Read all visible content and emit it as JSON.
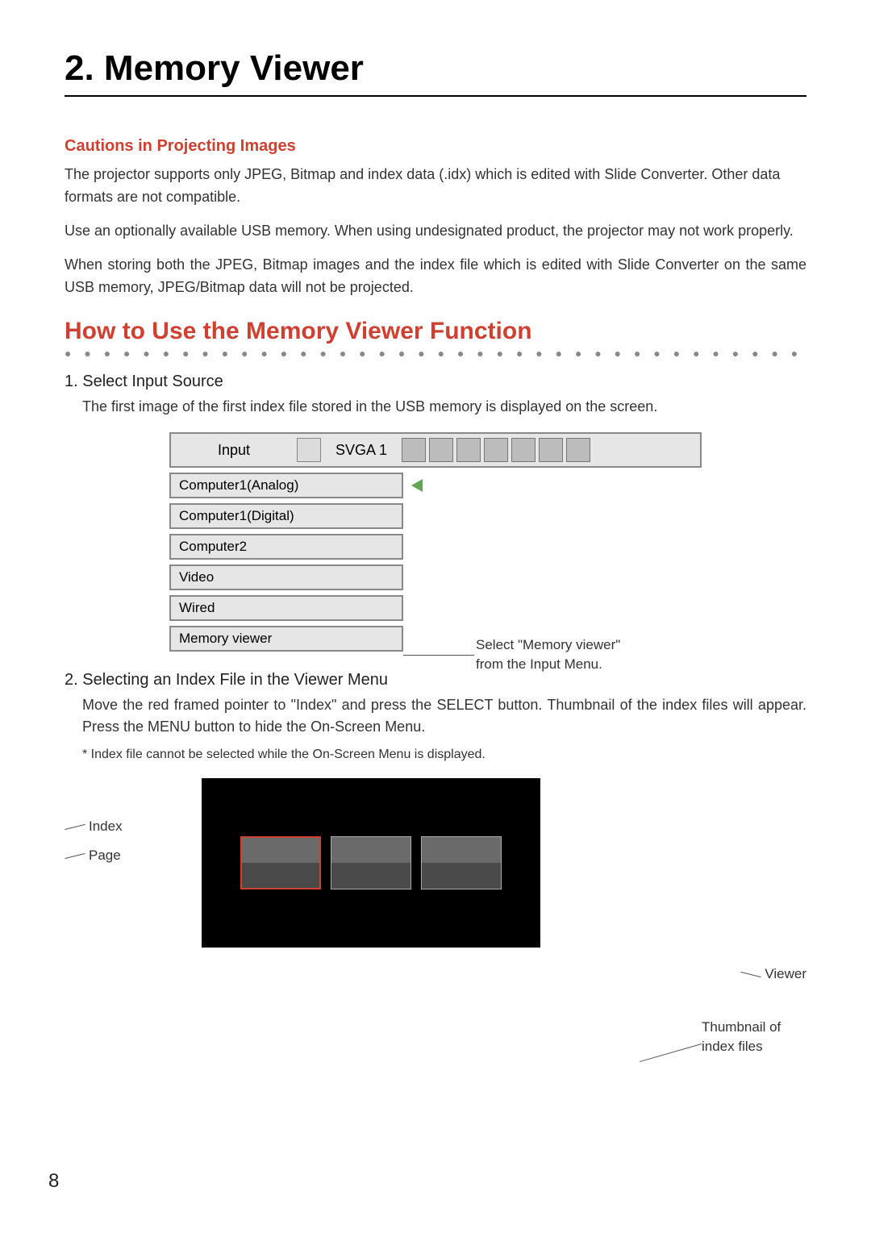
{
  "page": {
    "title": "2. Memory Viewer",
    "page_number": "8"
  },
  "cautions": {
    "heading": "Cautions in Projecting Images",
    "p1": "The projector supports only JPEG, Bitmap and index data (.idx) which is edited with Slide Converter.  Other data formats are not compatible.",
    "p2": "Use an optionally available USB memory.  When using undesignated product, the projector may not work properly.",
    "p3": "When storing both the JPEG, Bitmap images and the index file which is edited with Slide Converter on the same USB memory, JPEG/Bitmap data will not be projected."
  },
  "howto": {
    "heading": "How to Use the Memory Viewer Function",
    "dots": "● ● ● ● ● ● ● ● ● ● ● ● ● ● ● ● ● ● ● ● ● ● ● ● ● ● ● ● ● ● ● ● ● ● ● ● ● ● ● ● ● ● ● ● ● ● ● ● ● ● ● ● ● ● ● ● ● ● ● ● ● ● ● ● ● ●"
  },
  "step1": {
    "title": "1. Select Input Source",
    "text": "The first image of the first index file stored in the USB memory is displayed on the screen."
  },
  "menu": {
    "header_label": "Input",
    "mode": "SVGA 1",
    "items": [
      "Computer1(Analog)",
      "Computer1(Digital)",
      "Computer2",
      "Video",
      "Wired",
      "Memory viewer"
    ],
    "note_l1": "Select \"Memory viewer\"",
    "note_l2": "from the Input Menu."
  },
  "step2": {
    "title": "2. Selecting an Index File in the Viewer Menu",
    "text": "Move the red framed pointer to \"Index\" and press the SELECT button.  Thumbnail of the index files will appear.  Press the MENU button to hide the On-Screen Menu.",
    "footnote": "* Index file cannot be selected while the On-Screen Menu is displayed."
  },
  "viewer": {
    "label_index": "Index",
    "label_page": "Page",
    "note_viewer": "Viewer",
    "note_thumb": "Thumbnail of index files"
  },
  "colors": {
    "accent": "#d04030",
    "text": "#333333",
    "border": "#888888",
    "menu_bg": "#e6e6e6"
  }
}
